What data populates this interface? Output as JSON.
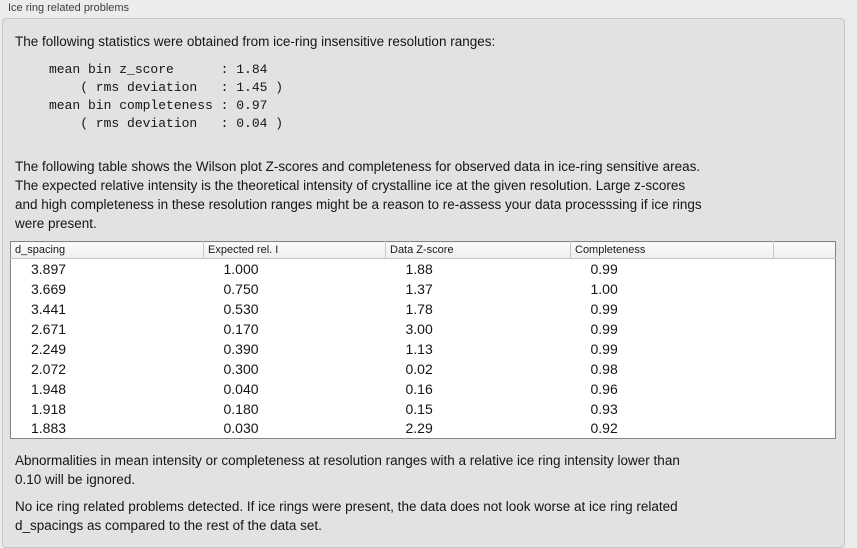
{
  "panel": {
    "title": "Ice ring related problems"
  },
  "intro": "The following statistics were obtained from ice-ring insensitive resolution ranges:",
  "stats_lines": [
    "mean bin z_score      : 1.84",
    "    ( rms deviation   : 1.45 )",
    "mean bin completeness : 0.97",
    "    ( rms deviation   : 0.04 )"
  ],
  "table_description": "The following table shows the Wilson plot Z-scores and completeness for observed data in ice-ring sensitive areas.\nThe expected relative intensity is the theoretical intensity of crystalline ice at the given resolution. Large z-scores\nand high completeness in these resolution ranges might be a reason to re-assess your data processsing if ice rings\nwere present.",
  "table": {
    "columns": [
      "d_spacing",
      "Expected rel. I",
      "Data Z-score",
      "Completeness"
    ],
    "rows": [
      [
        "3.897",
        "1.000",
        "1.88",
        "0.99"
      ],
      [
        "3.669",
        "0.750",
        "1.37",
        "1.00"
      ],
      [
        "3.441",
        "0.530",
        "1.78",
        "0.99"
      ],
      [
        "2.671",
        "0.170",
        "3.00",
        "0.99"
      ],
      [
        "2.249",
        "0.390",
        "1.13",
        "0.99"
      ],
      [
        "2.072",
        "0.300",
        "0.02",
        "0.98"
      ],
      [
        "1.948",
        "0.040",
        "0.16",
        "0.96"
      ],
      [
        "1.918",
        "0.180",
        "0.15",
        "0.93"
      ],
      [
        "1.883",
        "0.030",
        "2.29",
        "0.92"
      ]
    ]
  },
  "ignore_note": "Abnormalities in mean intensity or completeness at resolution ranges with a relative ice ring intensity lower than\n0.10 will be ignored.",
  "conclusion": "No ice ring related problems detected. If ice rings were present, the data does not look worse at ice ring related\nd_spacings as compared to the rest of the data set."
}
